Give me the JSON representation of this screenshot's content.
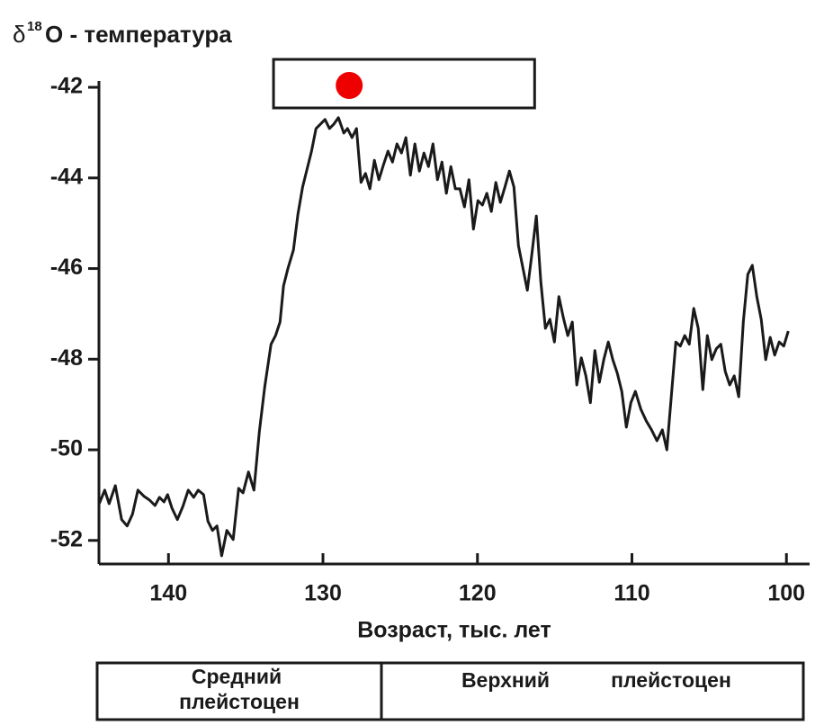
{
  "chart_data": {
    "type": "line",
    "title": {
      "symbol": "δ",
      "superscript": "18",
      "text": "O - температура"
    },
    "x_label": "Возраст, тыс. лет",
    "x": [
      144.48,
      144.13,
      143.84,
      143.44,
      143.03,
      142.68,
      142.33,
      141.98,
      141.57,
      141.22,
      140.87,
      140.58,
      140.29,
      140.06,
      139.77,
      139.42,
      139.07,
      138.72,
      138.37,
      138.08,
      137.73,
      137.44,
      137.15,
      136.86,
      136.56,
      136.22,
      135.81,
      135.46,
      135.17,
      134.82,
      134.47,
      134.12,
      133.77,
      133.36,
      133.07,
      132.78,
      132.55,
      132.26,
      131.91,
      131.62,
      131.32,
      131.03,
      130.74,
      130.45,
      130.16,
      129.87,
      129.58,
      129.29,
      129.0,
      128.65,
      128.41,
      128.12,
      127.83,
      127.54,
      127.25,
      126.96,
      126.67,
      126.38,
      126.08,
      125.79,
      125.5,
      125.21,
      124.92,
      124.63,
      124.34,
      124.05,
      123.76,
      123.46,
      123.17,
      122.88,
      122.59,
      122.3,
      122.01,
      121.72,
      121.43,
      121.14,
      120.84,
      120.55,
      120.26,
      119.97,
      119.68,
      119.39,
      119.1,
      118.81,
      118.52,
      118.22,
      117.93,
      117.64,
      117.35,
      117.06,
      116.77,
      116.48,
      116.19,
      115.9,
      115.6,
      115.31,
      115.02,
      114.73,
      114.44,
      114.15,
      113.86,
      113.57,
      113.28,
      112.98,
      112.69,
      112.4,
      112.11,
      111.82,
      111.53,
      111.24,
      110.95,
      110.66,
      110.36,
      110.07,
      109.78,
      109.43,
      109.08,
      108.73,
      108.38,
      108.03,
      107.74,
      107.45,
      107.16,
      106.87,
      106.58,
      106.29,
      106.0,
      105.71,
      105.41,
      105.12,
      104.83,
      104.54,
      104.25,
      103.96,
      103.67,
      103.38,
      103.09,
      102.79,
      102.5,
      102.21,
      101.92,
      101.63,
      101.34,
      101.05,
      100.76,
      100.47,
      100.17,
      99.88
    ],
    "values": [
      -51.19,
      -50.89,
      -51.19,
      -50.79,
      -51.54,
      -51.68,
      -51.42,
      -50.89,
      -51.03,
      -51.11,
      -51.23,
      -51.05,
      -51.15,
      -50.99,
      -51.29,
      -51.54,
      -51.25,
      -50.89,
      -51.05,
      -50.89,
      -50.99,
      -51.58,
      -51.78,
      -51.68,
      -52.34,
      -51.78,
      -51.98,
      -50.85,
      -50.95,
      -50.49,
      -50.89,
      -49.6,
      -48.61,
      -47.67,
      -47.48,
      -47.18,
      -46.38,
      -45.99,
      -45.59,
      -44.8,
      -44.2,
      -43.81,
      -43.41,
      -42.91,
      -42.81,
      -42.71,
      -42.91,
      -42.81,
      -42.67,
      -43.01,
      -42.91,
      -43.11,
      -42.91,
      -44.1,
      -43.9,
      -44.24,
      -43.61,
      -44.04,
      -43.71,
      -43.41,
      -43.65,
      -43.25,
      -43.45,
      -43.11,
      -43.94,
      -43.25,
      -43.85,
      -43.45,
      -43.75,
      -43.25,
      -44.04,
      -43.65,
      -44.34,
      -43.75,
      -44.24,
      -44.24,
      -44.64,
      -44.04,
      -45.13,
      -44.5,
      -44.6,
      -44.34,
      -44.74,
      -44.1,
      -44.54,
      -44.2,
      -43.85,
      -44.2,
      -45.49,
      -45.99,
      -46.48,
      -45.69,
      -44.84,
      -46.29,
      -47.32,
      -47.12,
      -47.62,
      -46.62,
      -47.08,
      -47.48,
      -47.18,
      -48.57,
      -47.97,
      -48.37,
      -48.96,
      -47.81,
      -48.51,
      -48.01,
      -47.62,
      -48.01,
      -48.31,
      -48.71,
      -49.5,
      -48.96,
      -48.71,
      -49.1,
      -49.36,
      -49.56,
      -49.8,
      -49.56,
      -50.0,
      -48.81,
      -47.62,
      -47.71,
      -47.48,
      -47.67,
      -46.88,
      -47.32,
      -48.67,
      -47.48,
      -48.01,
      -47.77,
      -47.67,
      -48.27,
      -48.57,
      -48.37,
      -48.83,
      -47.18,
      -46.13,
      -45.93,
      -46.62,
      -47.12,
      -48.01,
      -47.52,
      -47.91,
      -47.62,
      -47.71,
      -47.38
    ],
    "color": "#1a1a1a",
    "xlim": [
      144.5,
      98.5
    ],
    "xticks": [
      140,
      130,
      120,
      110,
      100
    ],
    "ylim": [
      -52.52,
      -41.86
    ],
    "yticks": [
      -42,
      -44,
      -46,
      -48,
      -50,
      -52
    ],
    "highlight_range": [
      133.2,
      116.3
    ],
    "marker": {
      "x": 128.3,
      "y": -41.96,
      "color": "#ee0000"
    },
    "periods": [
      [
        "Средний",
        "плейстоцен"
      ],
      [
        "Верхний",
        "плейстоцен"
      ]
    ]
  }
}
